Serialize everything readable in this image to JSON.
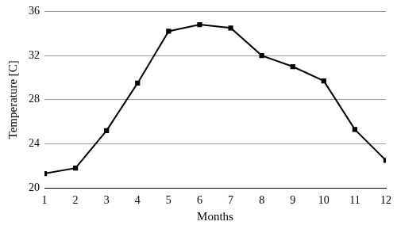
{
  "chart_data": {
    "type": "line",
    "x_label": "Months",
    "y_label": "Temperature [C]",
    "x": [
      1,
      2,
      3,
      4,
      5,
      6,
      7,
      8,
      9,
      10,
      11,
      12
    ],
    "values": [
      21.3,
      21.8,
      25.2,
      29.5,
      34.2,
      34.8,
      34.5,
      32.0,
      31.0,
      29.7,
      25.3,
      22.5
    ],
    "color": "#000000",
    "marker": "square",
    "line_style": "solid",
    "xlim": [
      1,
      12
    ],
    "xticks": [
      1,
      2,
      3,
      4,
      5,
      6,
      7,
      8,
      9,
      10,
      11,
      12
    ],
    "ylim": [
      20,
      36
    ],
    "yticks": [
      20,
      24,
      28,
      32,
      36
    ],
    "grid": true
  }
}
